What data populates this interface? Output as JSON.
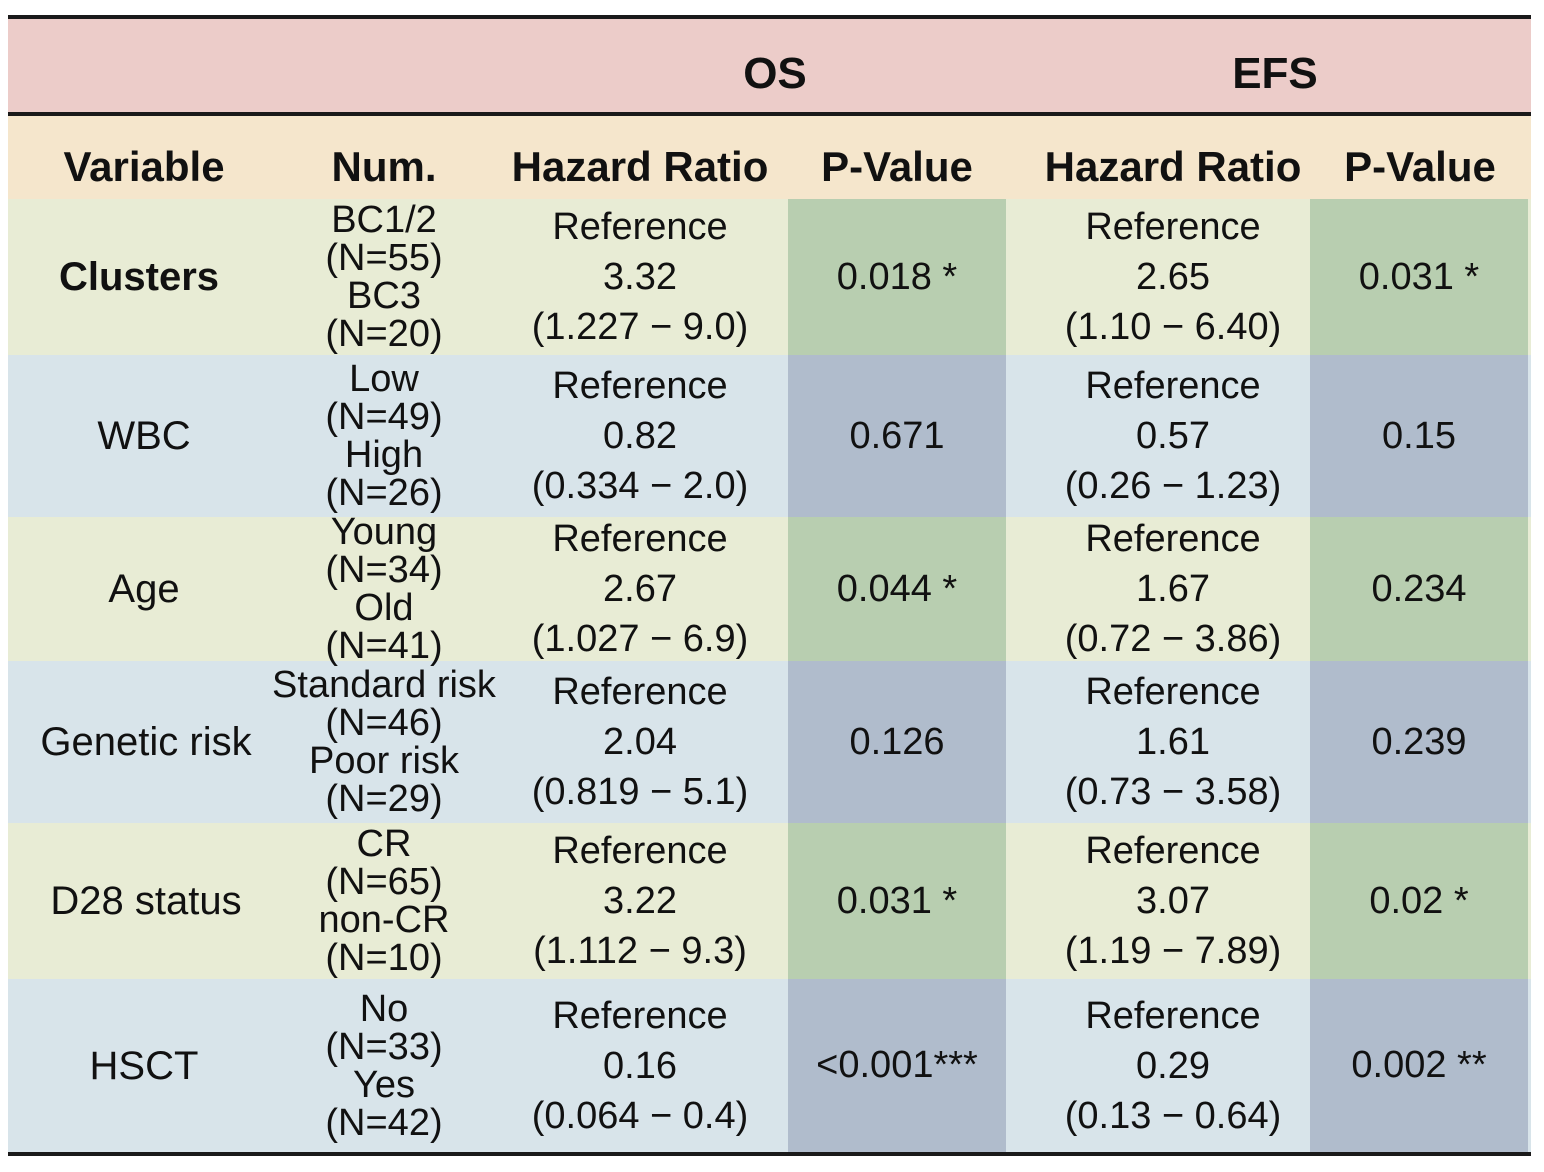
{
  "header": {
    "os_label": "OS",
    "efs_label": "EFS"
  },
  "columns": [
    "Variable",
    "Num.",
    "Hazard Ratio",
    "P-Value",
    "Hazard Ratio",
    "P-Value"
  ],
  "rows": [
    {
      "variable": "Clusters",
      "num": [
        "BC1/2",
        "(N=55)",
        "BC3",
        "(N=20)"
      ],
      "os_hr": [
        "Reference",
        "3.32",
        "(1.227 − 9.0)"
      ],
      "os_p": "0.018 *",
      "efs_hr": [
        "Reference",
        "2.65",
        "(1.10 − 6.40)"
      ],
      "efs_p": "0.031 *"
    },
    {
      "variable": "WBC",
      "num": [
        "Low",
        "(N=49)",
        "High",
        "(N=26)"
      ],
      "os_hr": [
        "Reference",
        "0.82",
        "(0.334 − 2.0)"
      ],
      "os_p": "0.671",
      "efs_hr": [
        "Reference",
        "0.57",
        "(0.26 − 1.23)"
      ],
      "efs_p": "0.15"
    },
    {
      "variable": "Age",
      "num": [
        "Young",
        "(N=34)",
        "Old",
        "(N=41)"
      ],
      "os_hr": [
        "Reference",
        "2.67",
        "(1.027 − 6.9)"
      ],
      "os_p": "0.044 *",
      "efs_hr": [
        "Reference",
        "1.67",
        "(0.72 − 3.86)"
      ],
      "efs_p": "0.234"
    },
    {
      "variable": "Genetic risk",
      "num": [
        "Standard risk",
        "(N=46)",
        "Poor risk",
        "(N=29)"
      ],
      "os_hr": [
        "Reference",
        "2.04",
        "(0.819 − 5.1)"
      ],
      "os_p": "0.126",
      "efs_hr": [
        "Reference",
        "1.61",
        "(0.73 − 3.58)"
      ],
      "efs_p": "0.239"
    },
    {
      "variable": "D28 status",
      "num": [
        "CR",
        "(N=65)",
        "non-CR",
        "(N=10)"
      ],
      "os_hr": [
        "Reference",
        "3.22",
        "(1.112 − 9.3)"
      ],
      "os_p": "0.031 *",
      "efs_hr": [
        "Reference",
        "3.07",
        "(1.19 − 7.89)"
      ],
      "efs_p": "0.02 *"
    },
    {
      "variable": "HSCT",
      "num": [
        "No",
        "(N=33)",
        "Yes",
        "(N=42)"
      ],
      "os_hr": [
        "Reference",
        "0.16",
        "(0.064 − 0.4)"
      ],
      "os_p": "<0.001***",
      "efs_hr": [
        "Reference",
        "0.29",
        "(0.13 − 0.64)"
      ],
      "efs_p": "0.002 **"
    }
  ],
  "colors": {
    "top_header_bg": "#ecccc9",
    "column_header_bg": "#f5e6cc",
    "green_row_bg": "#e8ecd5",
    "green_pvalue_bg": "#b8ceb0",
    "blue_row_bg": "#d8e4ea",
    "blue_pvalue_bg": "#b0bccc"
  }
}
